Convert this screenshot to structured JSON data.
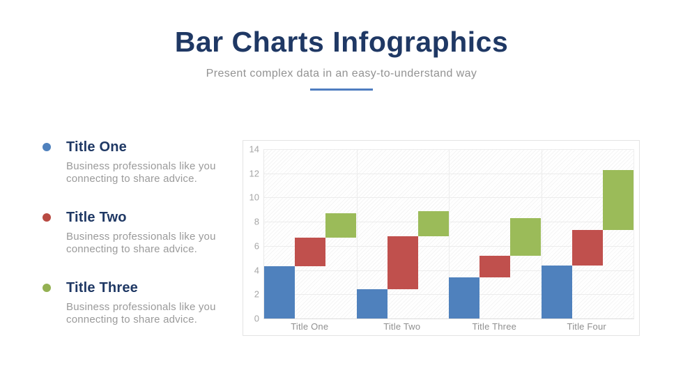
{
  "header": {
    "title": "Bar Charts Infographics",
    "subtitle": "Present complex data in an easy-to-understand way"
  },
  "colors": {
    "title_navy": "#1f3864",
    "divider_blue": "#4e7dc0",
    "series_blue": "#4f81bd",
    "series_red": "#c0504d",
    "series_green": "#9bbb59",
    "chart_border": "#e4e4e4",
    "gridline": "#ececec"
  },
  "legend": {
    "items": [
      {
        "title": "Title One",
        "bullet_color": "#4f81bd",
        "desc": [
          "Business professionals like you",
          "connecting to share advice."
        ]
      },
      {
        "title": "Title Two",
        "bullet_color": "#b84a42",
        "desc": [
          "Business professionals like you",
          "connecting to share advice."
        ]
      },
      {
        "title": "Title Three",
        "bullet_color": "#94b152",
        "desc": [
          "Business professionals like you",
          "connecting to share advice."
        ]
      }
    ]
  },
  "chart_data": {
    "type": "bar",
    "subtype": "stepped-waterfall",
    "title": "",
    "xlabel": "",
    "ylabel": "",
    "categories": [
      "Title One",
      "Title Two",
      "Title Three",
      "Title Four"
    ],
    "series": [
      {
        "name": "Title One (blue)",
        "color": "#4f81bd",
        "ranges": [
          [
            0,
            4.3
          ],
          [
            0,
            2.4
          ],
          [
            0,
            3.4
          ],
          [
            0,
            4.4
          ]
        ]
      },
      {
        "name": "Title Two (red)",
        "color": "#c0504d",
        "ranges": [
          [
            4.3,
            6.7
          ],
          [
            2.4,
            6.8
          ],
          [
            3.4,
            5.2
          ],
          [
            4.4,
            7.3
          ]
        ]
      },
      {
        "name": "Title Three (green)",
        "color": "#9bbb59",
        "ranges": [
          [
            6.7,
            8.7
          ],
          [
            6.8,
            8.9
          ],
          [
            5.2,
            8.3
          ],
          [
            7.3,
            12.3
          ]
        ]
      }
    ],
    "ylim": [
      0,
      14
    ],
    "yticks": [
      0,
      2,
      4,
      6,
      8,
      10,
      12,
      14
    ],
    "grid": true,
    "hatch_background": true,
    "legend_position": "left-of-chart"
  }
}
